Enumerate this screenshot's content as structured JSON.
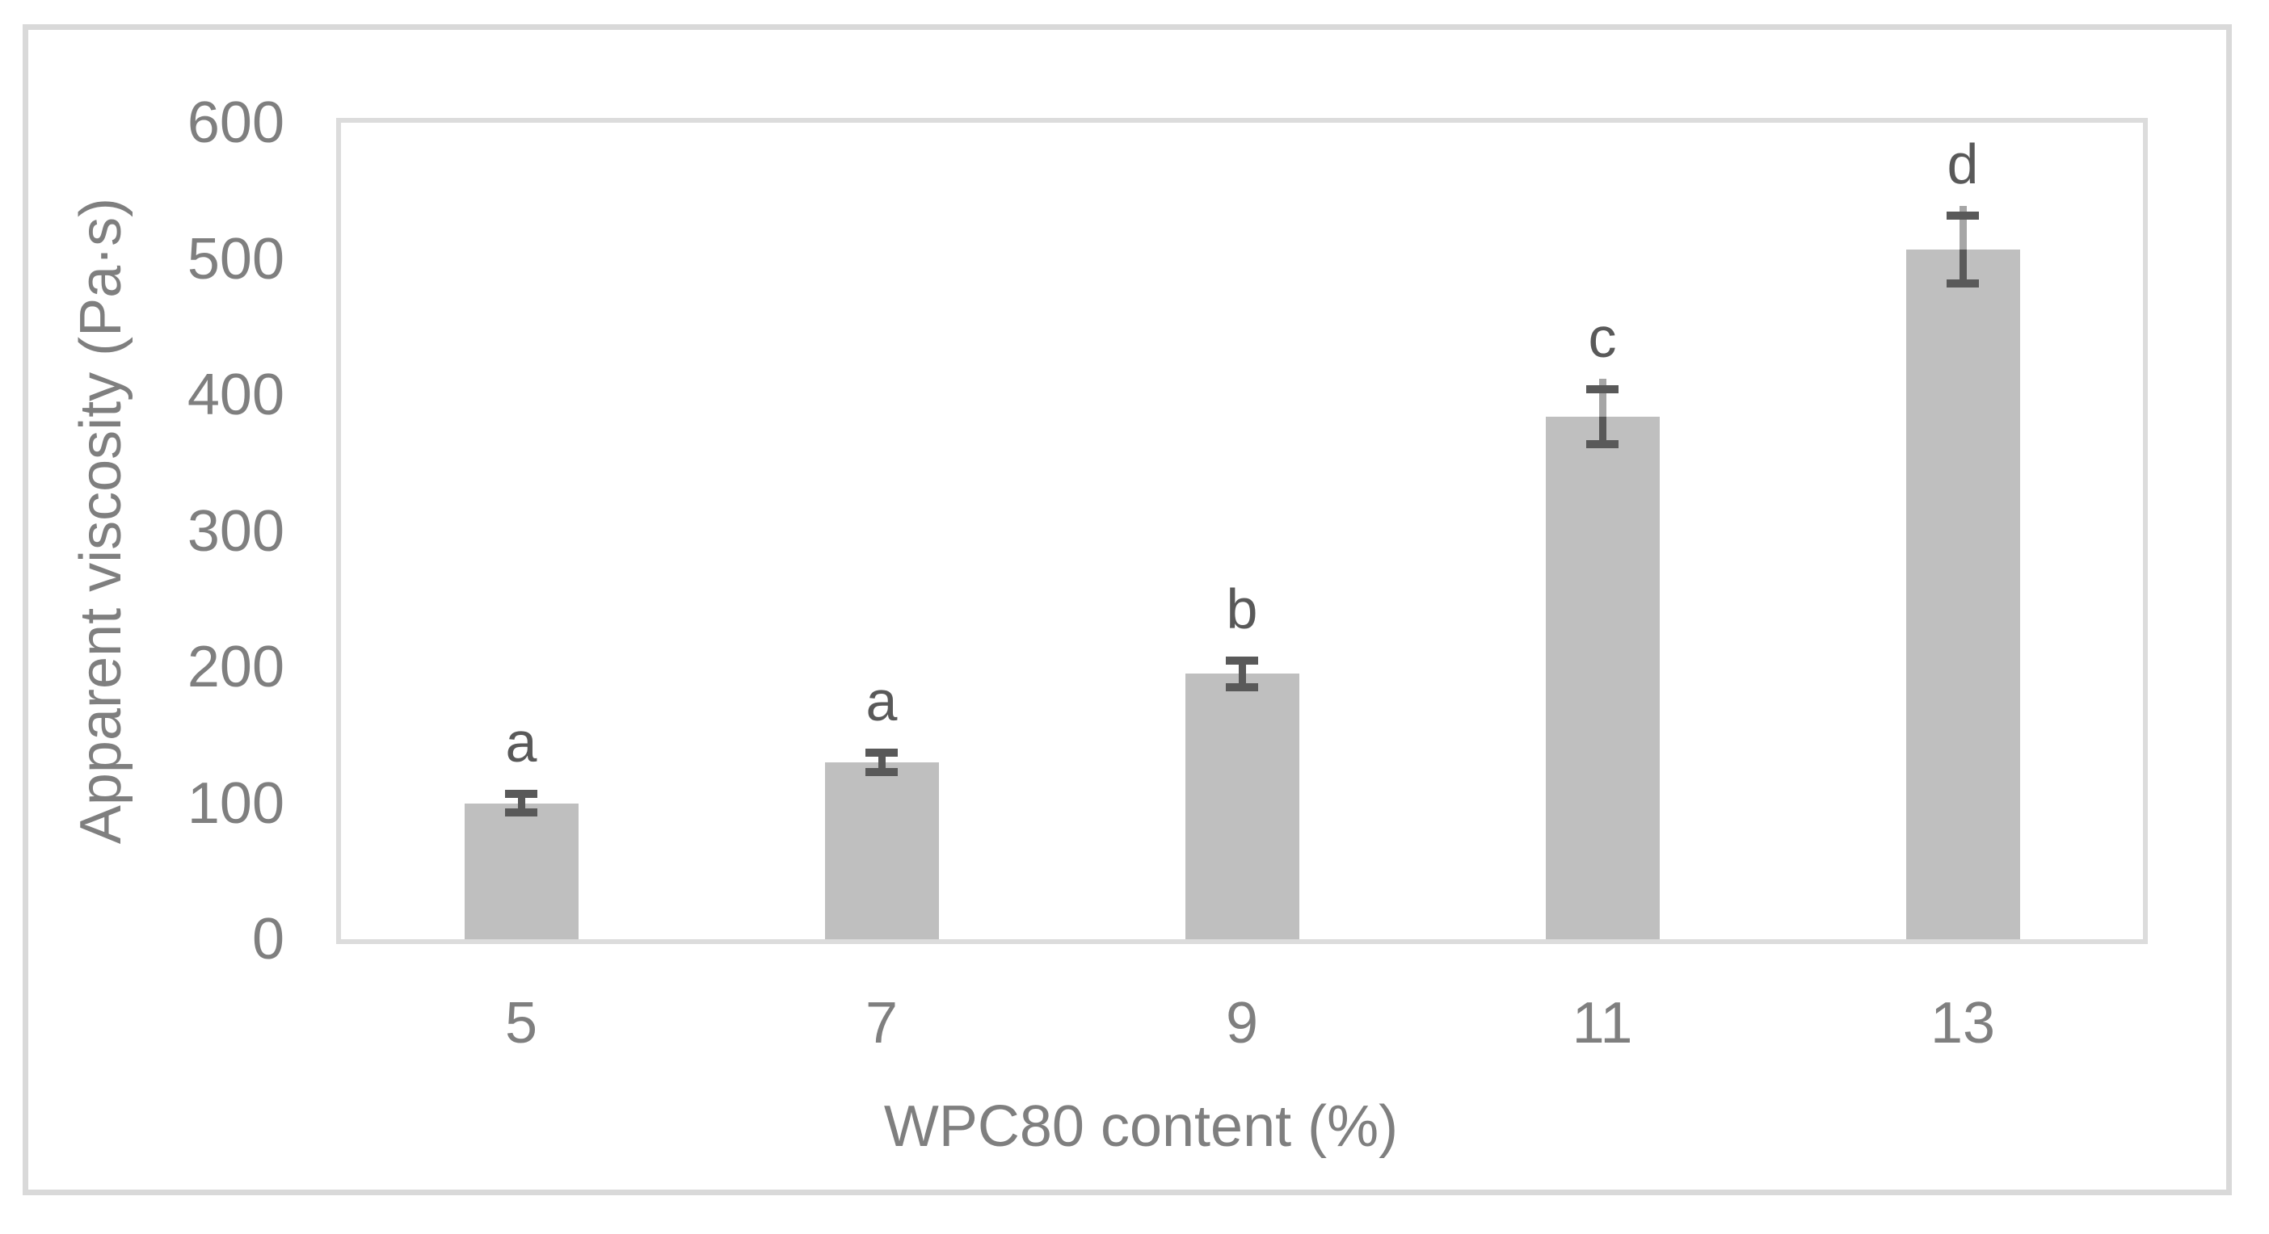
{
  "chart_data": {
    "type": "bar",
    "title": "",
    "xlabel": "WPC80 content (%)",
    "ylabel": "Apparent viscosity (Pa·s)",
    "categories": [
      "5",
      "7",
      "9",
      "11",
      "13"
    ],
    "values": [
      100,
      130,
      195,
      384,
      507
    ],
    "error_bars_plus_minus": [
      7,
      7,
      10,
      20,
      25
    ],
    "upper_light_stems": [
      0,
      0,
      0,
      28,
      32
    ],
    "significance_letters": [
      "a",
      "a",
      "b",
      "c",
      "d"
    ],
    "ylim": [
      0,
      600
    ],
    "yticks": [
      0,
      100,
      200,
      300,
      400,
      500,
      600
    ],
    "grid": "off",
    "legend": "none",
    "colors": {
      "bar_fill": "#BFBFBF",
      "error_bar_dark": "#595959",
      "error_stem_light": "#A6A6A6",
      "axis_frame": "#DCDCDC",
      "outer_border": "#D9D9D9",
      "tick_text": "#7F7F7F",
      "letter_text": "#595959"
    }
  }
}
